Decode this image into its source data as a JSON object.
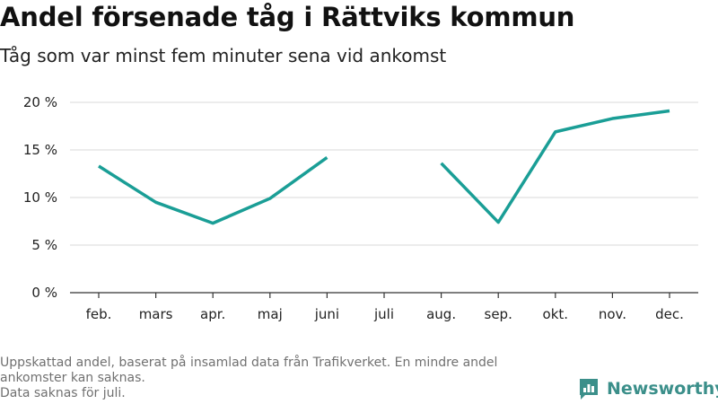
{
  "title": "Andel försenade tåg i Rättviks kommun",
  "subtitle": "Tåg som var minst fem minuter sena vid ankomst",
  "footnote_lines": [
    "Uppskattad andel, baserat på insamlad data från Trafikverket. En mindre andel",
    "ankomster kan saknas.",
    "Data saknas för juli."
  ],
  "logo_text": "Newsworthy",
  "colors": {
    "line": "#1a9e96",
    "grid": "#d8d8d8",
    "axis": "#333333",
    "logo": "#3b8f8a"
  },
  "chart_data": {
    "type": "line",
    "categories": [
      "feb.",
      "mars",
      "apr.",
      "maj",
      "juni",
      "juli",
      "aug.",
      "sep.",
      "okt.",
      "nov.",
      "dec."
    ],
    "series": [
      {
        "values": [
          13.3,
          9.5,
          7.3,
          9.9,
          14.2,
          null,
          13.6,
          7.4,
          16.9,
          18.3,
          19.1
        ]
      }
    ],
    "yticks": [
      0,
      5,
      10,
      15,
      20
    ],
    "ytick_labels": [
      "0 %",
      "5 %",
      "10 %",
      "15 %",
      "20 %"
    ],
    "ylim": [
      0,
      20
    ],
    "grid": true,
    "xlabel": "",
    "ylabel": ""
  }
}
